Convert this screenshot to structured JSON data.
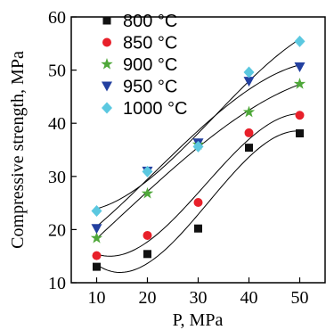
{
  "chart_data": {
    "type": "scatter",
    "title": "",
    "xlabel": "P, MPa",
    "ylabel": "Compressive strength, MPa",
    "xlim": [
      5,
      55
    ],
    "ylim": [
      10,
      60
    ],
    "xticks": [
      10,
      20,
      30,
      40,
      50
    ],
    "yticks": [
      10,
      20,
      30,
      40,
      50,
      60
    ],
    "grid": false,
    "legend_position": "top-left",
    "fit_curves": true,
    "x": [
      10,
      20,
      30,
      40,
      50
    ],
    "series": [
      {
        "name": "800 °C",
        "marker": "square",
        "color": "#111111",
        "values": [
          13.0,
          15.4,
          20.2,
          35.4,
          38.1
        ]
      },
      {
        "name": "850 °C",
        "marker": "circle",
        "color": "#e8202a",
        "values": [
          15.1,
          18.9,
          25.1,
          38.2,
          41.5
        ]
      },
      {
        "name": "900 °C",
        "marker": "star",
        "color": "#4fa83a",
        "values": [
          18.4,
          26.8,
          36.0,
          42.1,
          47.4
        ]
      },
      {
        "name": "950 °C",
        "marker": "triangle-down",
        "color": "#2340a0",
        "values": [
          20.2,
          31.0,
          36.3,
          47.9,
          50.6
        ]
      },
      {
        "name": "1000 °C",
        "marker": "diamond",
        "color": "#5bc8e0",
        "values": [
          23.5,
          30.9,
          35.6,
          49.6,
          55.4
        ]
      }
    ]
  }
}
